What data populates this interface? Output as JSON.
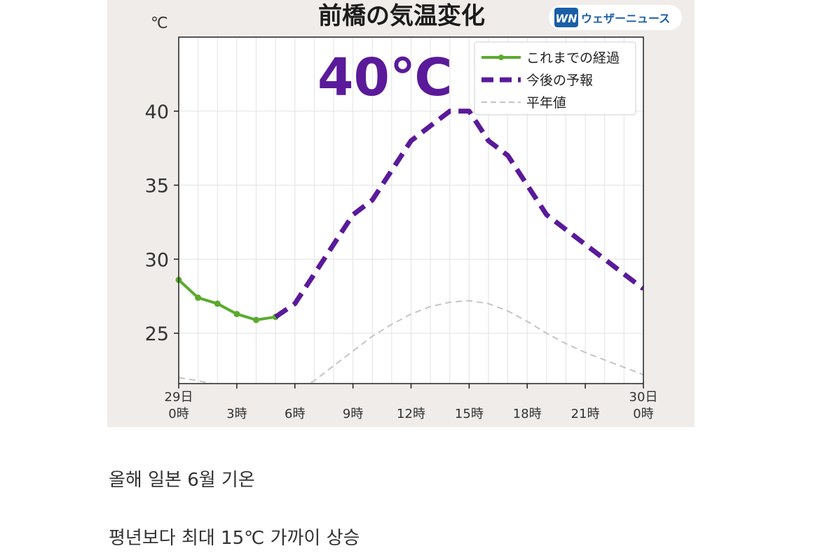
{
  "figure": {
    "title": "前橋の気温変化",
    "brand": {
      "logo_text": "WN",
      "name": "ウェザーニュース",
      "color": "#1b5ea8"
    },
    "highlight": {
      "text": "40℃",
      "color": "#5a1a9a"
    }
  },
  "chart_data": {
    "type": "line",
    "title": "前橋の気温変化",
    "ylabel": "℃",
    "xlabel": "",
    "ylim": [
      21.6,
      45
    ],
    "xlim": [
      0,
      24
    ],
    "yticks": [
      25,
      30,
      35,
      40
    ],
    "xticks": [
      {
        "x": 0,
        "label_top": "29日",
        "label_bottom": "0時"
      },
      {
        "x": 3,
        "label_top": "",
        "label_bottom": "3時"
      },
      {
        "x": 6,
        "label_top": "",
        "label_bottom": "6時"
      },
      {
        "x": 9,
        "label_top": "",
        "label_bottom": "9時"
      },
      {
        "x": 12,
        "label_top": "",
        "label_bottom": "12時"
      },
      {
        "x": 15,
        "label_top": "",
        "label_bottom": "15時"
      },
      {
        "x": 18,
        "label_top": "",
        "label_bottom": "18時"
      },
      {
        "x": 21,
        "label_top": "",
        "label_bottom": "21時"
      },
      {
        "x": 24,
        "label_top": "30日",
        "label_bottom": "0時"
      }
    ],
    "grid": true,
    "legend_position": "top-right",
    "series": [
      {
        "name": "これまでの経過",
        "style": "solid-markers",
        "color": "#5aab2e",
        "x": [
          0,
          1,
          2,
          3,
          4,
          5
        ],
        "y": [
          28.6,
          27.4,
          27.0,
          26.3,
          25.9,
          26.1
        ]
      },
      {
        "name": "今後の予報",
        "style": "dashed-thick",
        "color": "#5a1a9a",
        "x": [
          5,
          6,
          7,
          8,
          9,
          10,
          11,
          12,
          13,
          14,
          15,
          16,
          17,
          18,
          19,
          20,
          21,
          22,
          23,
          24
        ],
        "y": [
          26.1,
          27.0,
          29.0,
          31.0,
          33.0,
          34.0,
          36.0,
          38.0,
          39.0,
          40.0,
          40.0,
          38.0,
          37.0,
          35.0,
          33.0,
          32.0,
          31.0,
          30.0,
          29.0,
          28.0
        ]
      },
      {
        "name": "平年値",
        "style": "dashed-thin",
        "color": "#c4c4c4",
        "x": [
          0,
          1,
          2,
          3,
          4,
          5,
          6,
          7,
          8,
          9,
          10,
          11,
          12,
          13,
          14,
          15,
          16,
          17,
          18,
          19,
          20,
          21,
          22,
          23,
          24
        ],
        "y": [
          22.0,
          21.8,
          21.5,
          21.2,
          21.0,
          20.9,
          21.0,
          21.8,
          22.8,
          23.8,
          24.8,
          25.6,
          26.3,
          26.8,
          27.1,
          27.2,
          27.0,
          26.5,
          25.8,
          25.0,
          24.3,
          23.7,
          23.2,
          22.7,
          22.2
        ]
      }
    ]
  },
  "captions": {
    "line1": "올해 일본 6월 기온",
    "line2": "평년보다 최대 15℃ 가까이 상승"
  }
}
